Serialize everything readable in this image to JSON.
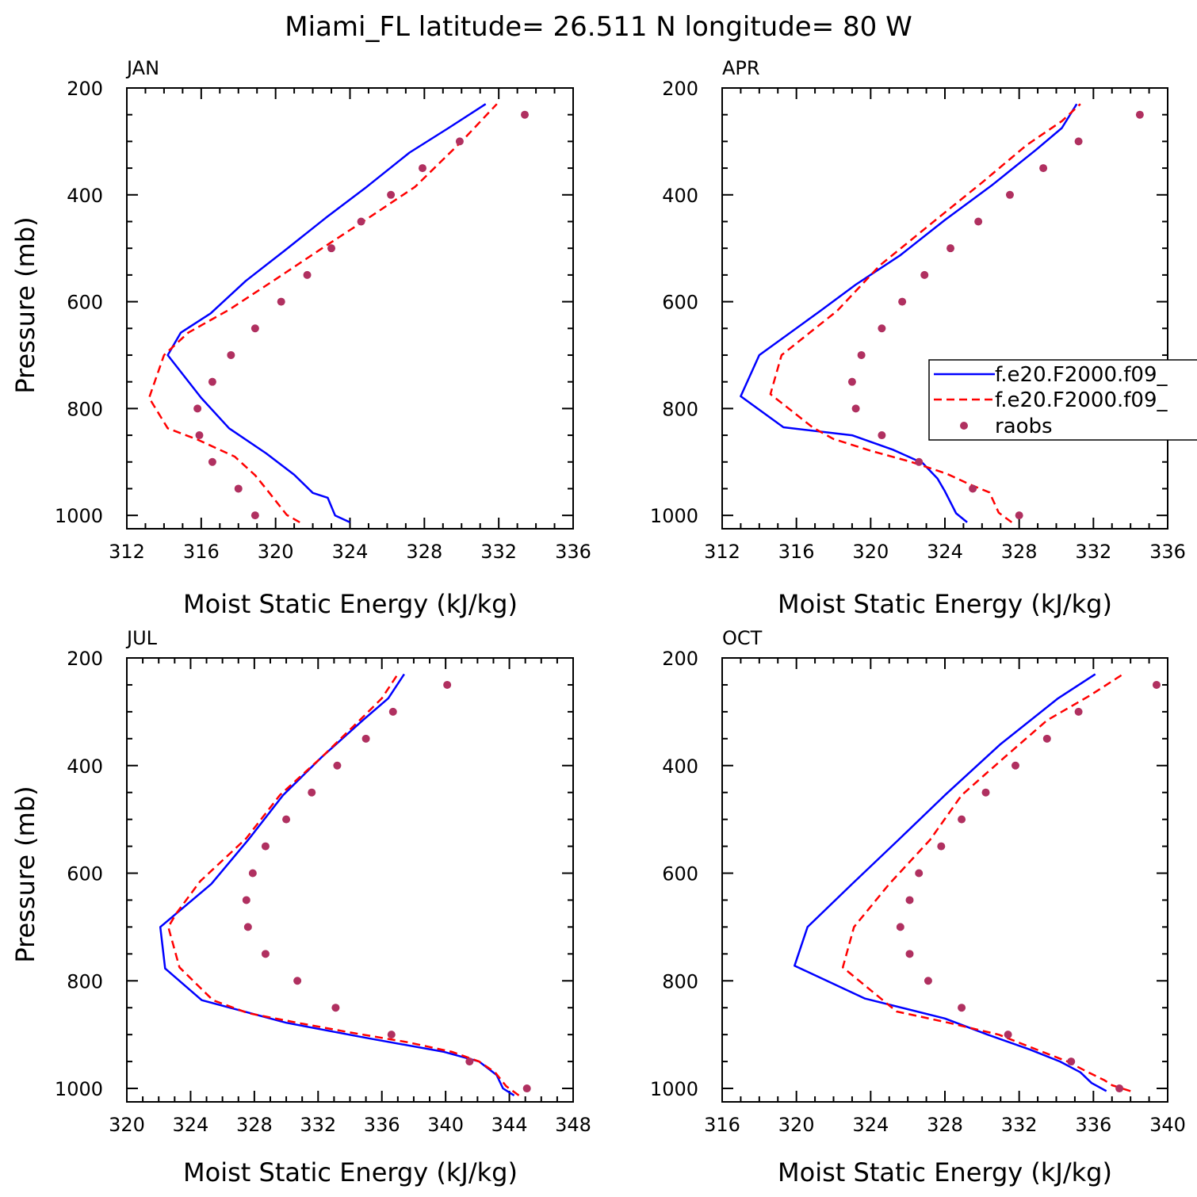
{
  "title": "Miami_FL  latitude= 26.511 N longitude= 80 W",
  "colors": {
    "series1": "#0000ff",
    "series2": "#ff0000",
    "raobs": "#b03060"
  },
  "legend": {
    "location": "right of APR panel",
    "entries": [
      "f.e20.F2000.f09_",
      "f.e20.F2000.f09_",
      "raobs"
    ]
  },
  "chart_data": [
    {
      "type": "line",
      "panel": "JAN",
      "xlabel": "Moist Static Energy (kJ/kg)",
      "ylabel": "Pressure (mb)",
      "xlim": [
        312,
        336
      ],
      "ylim": [
        1025,
        200
      ],
      "xticks": [
        312,
        316,
        320,
        324,
        328,
        332,
        336
      ],
      "yticks": [
        200,
        400,
        600,
        800,
        1000
      ],
      "grid": false,
      "series": [
        {
          "name": "f.e20.F2000.f09_",
          "style": "solid",
          "x": [
            324.0,
            323.2,
            322.8,
            322.0,
            321.0,
            319.5,
            317.5,
            316.0,
            314.2,
            314.9,
            316.5,
            318.4,
            320.5,
            322.7,
            324.9,
            327.2,
            329.3,
            331.3
          ],
          "y": [
            1013,
            1000,
            967,
            958,
            924,
            884,
            837,
            780,
            700,
            658,
            622,
            561,
            504,
            443,
            385,
            321,
            275,
            230
          ]
        },
        {
          "name": "f.e20.F2000.f09_",
          "style": "dashed",
          "x": [
            321.3,
            320.6,
            319.6,
            318.9,
            317.8,
            315.8,
            314.2,
            313.2,
            314.0,
            315.3,
            317.5,
            320.0,
            322.5,
            325.0,
            327.5,
            330.0,
            331.9
          ],
          "y": [
            1013,
            999,
            955,
            925,
            890,
            858,
            837,
            780,
            700,
            658,
            615,
            558,
            500,
            443,
            385,
            300,
            230
          ]
        },
        {
          "name": "raobs",
          "style": "dots",
          "x": [
            318.9,
            318.0,
            316.6,
            315.9,
            315.8,
            316.6,
            317.6,
            318.9,
            320.3,
            321.7,
            323.0,
            324.6,
            326.2,
            327.9,
            329.9,
            333.4
          ],
          "y": [
            1000,
            950,
            900,
            850,
            800,
            750,
            700,
            650,
            600,
            550,
            500,
            450,
            400,
            350,
            300,
            250
          ]
        }
      ]
    },
    {
      "type": "line",
      "panel": "APR",
      "xlabel": "Moist Static Energy (kJ/kg)",
      "ylabel": "",
      "xlim": [
        312,
        336
      ],
      "ylim": [
        1025,
        200
      ],
      "xticks": [
        312,
        316,
        320,
        324,
        328,
        332,
        336
      ],
      "yticks": [
        200,
        400,
        600,
        800,
        1000
      ],
      "grid": false,
      "series": [
        {
          "name": "f.e20.F2000.f09_",
          "style": "solid",
          "x": [
            325.2,
            324.6,
            324.0,
            323.6,
            322.8,
            321.2,
            319.0,
            315.3,
            313.0,
            314.0,
            317.3,
            319.2,
            321.6,
            324.0,
            326.5,
            328.9,
            330.3,
            331.1
          ],
          "y": [
            1013,
            996,
            955,
            931,
            902,
            877,
            850,
            835,
            777,
            700,
            617,
            568,
            513,
            447,
            383,
            316,
            275,
            230
          ]
        },
        {
          "name": "f.e20.F2000.f09_",
          "style": "dashed",
          "x": [
            327.6,
            326.9,
            326.4,
            325.4,
            324.1,
            322.2,
            320.0,
            318.0,
            316.9,
            314.6,
            315.2,
            318.2,
            320.5,
            323.5,
            326.0,
            328.4,
            330.3,
            331.3
          ],
          "y": [
            1013,
            995,
            957,
            943,
            922,
            900,
            879,
            857,
            836,
            773,
            700,
            617,
            532,
            447,
            377,
            307,
            262,
            230
          ]
        },
        {
          "name": "raobs",
          "style": "dots",
          "x": [
            328.0,
            325.5,
            322.6,
            320.6,
            319.2,
            319.0,
            319.5,
            320.6,
            321.7,
            322.9,
            324.3,
            325.8,
            327.5,
            329.3,
            331.2,
            334.5
          ],
          "y": [
            1000,
            950,
            900,
            850,
            800,
            750,
            700,
            650,
            600,
            550,
            500,
            450,
            400,
            350,
            300,
            250
          ]
        }
      ]
    },
    {
      "type": "line",
      "panel": "JUL",
      "xlabel": "Moist Static Energy (kJ/kg)",
      "ylabel": "Pressure (mb)",
      "xlim": [
        320,
        348
      ],
      "ylim": [
        1025,
        200
      ],
      "xticks": [
        320,
        324,
        328,
        332,
        336,
        340,
        344,
        348
      ],
      "yticks": [
        200,
        400,
        600,
        800,
        1000
      ],
      "grid": false,
      "series": [
        {
          "name": "f.e20.F2000.f09_",
          "style": "solid",
          "x": [
            344.3,
            343.6,
            343.2,
            342.1,
            339.9,
            335.0,
            330.0,
            324.7,
            322.4,
            322.1,
            325.3,
            327.7,
            329.8,
            332.2,
            334.8,
            336.4,
            337.4
          ],
          "y": [
            1013,
            1000,
            975,
            950,
            932,
            906,
            878,
            836,
            777,
            700,
            620,
            535,
            455,
            385,
            316,
            275,
            230
          ]
        },
        {
          "name": "f.e20.F2000.f09_",
          "style": "dashed",
          "x": [
            344.6,
            343.8,
            343.1,
            342.1,
            340.4,
            337.6,
            334.0,
            330.7,
            327.6,
            325.4,
            323.3,
            322.6,
            323.1,
            324.6,
            327.5,
            329.6,
            332.2,
            334.6,
            336.0,
            337.0
          ],
          "y": [
            1013,
            996,
            970,
            950,
            932,
            914,
            896,
            878,
            860,
            836,
            775,
            700,
            675,
            615,
            535,
            455,
            385,
            316,
            275,
            230
          ]
        },
        {
          "name": "raobs",
          "style": "dots",
          "x": [
            345.1,
            341.5,
            336.6,
            333.1,
            330.7,
            328.7,
            327.6,
            327.5,
            327.9,
            328.7,
            330.0,
            331.6,
            333.2,
            335.0,
            336.7,
            340.1
          ],
          "y": [
            1000,
            950,
            900,
            850,
            800,
            750,
            700,
            650,
            600,
            550,
            500,
            450,
            400,
            350,
            300,
            250
          ]
        }
      ]
    },
    {
      "type": "line",
      "panel": "OCT",
      "xlabel": "Moist Static Energy (kJ/kg)",
      "ylabel": "",
      "xlim": [
        316,
        340
      ],
      "ylim": [
        1025,
        200
      ],
      "xticks": [
        316,
        320,
        324,
        328,
        332,
        336,
        340
      ],
      "yticks": [
        200,
        400,
        600,
        800,
        1000
      ],
      "grid": false,
      "series": [
        {
          "name": "f.e20.F2000.f09_",
          "style": "solid",
          "x": [
            336.7,
            335.9,
            335.3,
            334.2,
            332.6,
            330.3,
            328.0,
            323.7,
            319.9,
            320.6,
            323.0,
            325.5,
            328.0,
            331.0,
            334.1,
            336.1
          ],
          "y": [
            1005,
            990,
            970,
            950,
            928,
            900,
            870,
            833,
            772,
            700,
            620,
            538,
            455,
            360,
            275,
            230
          ]
        },
        {
          "name": "f.e20.F2000.f09_",
          "style": "dashed",
          "x": [
            338.0,
            337.0,
            336.6,
            335.6,
            334.6,
            333.1,
            330.9,
            328.2,
            325.4,
            322.5,
            323.1,
            325.0,
            327.2,
            328.9,
            331.2,
            333.5,
            335.8,
            337.6
          ],
          "y": [
            1005,
            994,
            985,
            968,
            950,
            930,
            900,
            878,
            857,
            775,
            700,
            620,
            538,
            455,
            385,
            316,
            270,
            230
          ]
        },
        {
          "name": "raobs",
          "style": "dots",
          "x": [
            337.4,
            334.8,
            331.4,
            328.9,
            327.1,
            326.1,
            325.6,
            326.1,
            326.6,
            327.8,
            328.9,
            330.2,
            331.8,
            333.5,
            335.2,
            339.4
          ],
          "y": [
            1000,
            950,
            900,
            850,
            800,
            750,
            700,
            650,
            600,
            550,
            500,
            450,
            400,
            350,
            300,
            250
          ]
        }
      ]
    }
  ]
}
